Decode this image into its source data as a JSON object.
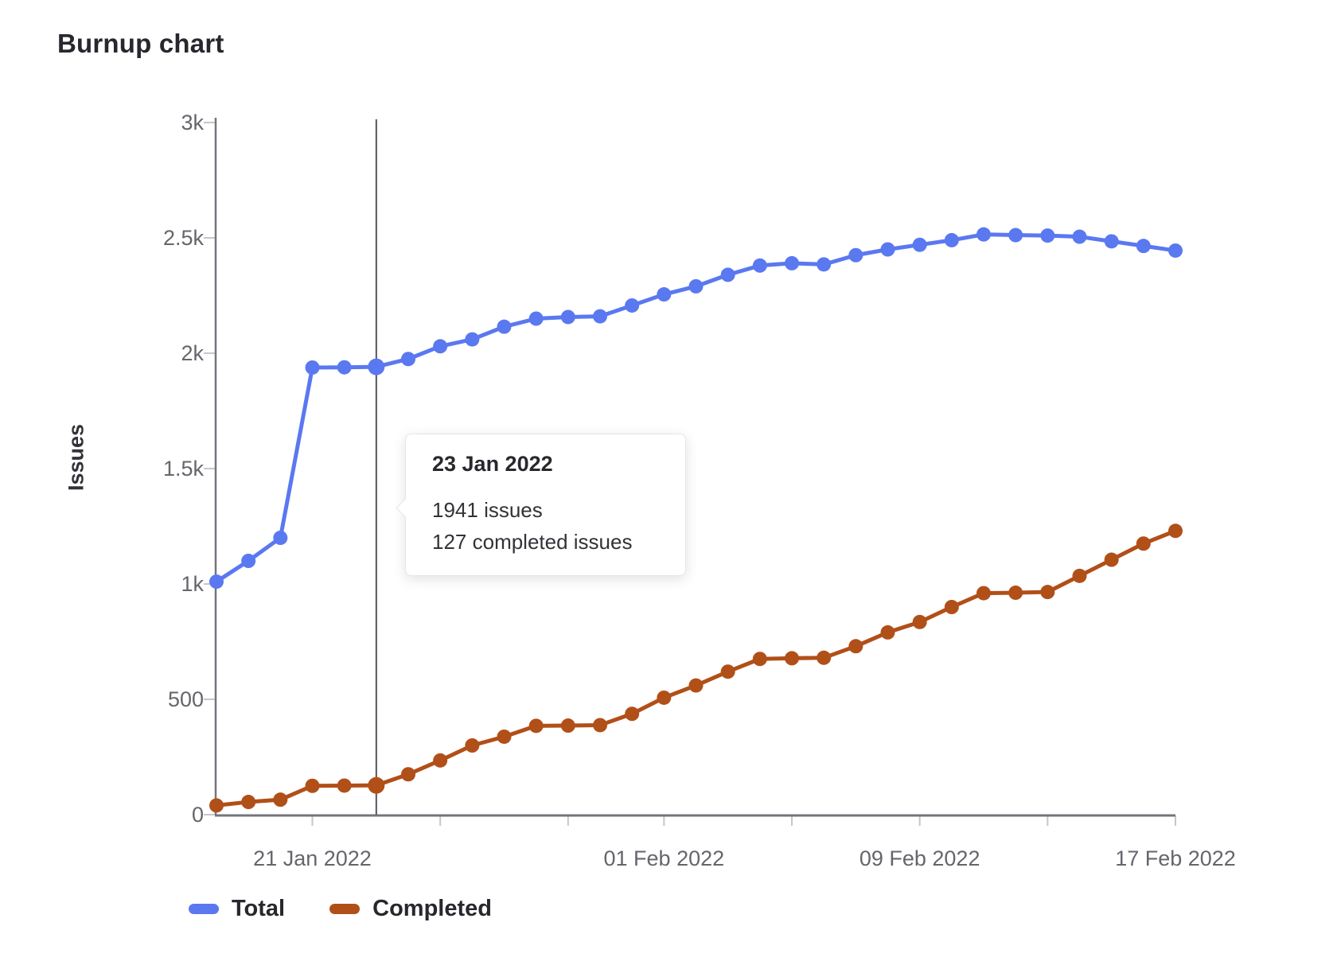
{
  "header": {
    "title": "Burnup chart"
  },
  "chart_data": {
    "type": "line",
    "title": "Burnup chart",
    "xlabel": "",
    "ylabel": "Issues",
    "ylim": [
      0,
      3000
    ],
    "grid": false,
    "legend_position": "bottom",
    "x": [
      "18 Jan 2022",
      "19 Jan 2022",
      "20 Jan 2022",
      "21 Jan 2022",
      "22 Jan 2022",
      "23 Jan 2022",
      "24 Jan 2022",
      "25 Jan 2022",
      "26 Jan 2022",
      "27 Jan 2022",
      "28 Jan 2022",
      "29 Jan 2022",
      "30 Jan 2022",
      "31 Jan 2022",
      "01 Feb 2022",
      "02 Feb 2022",
      "03 Feb 2022",
      "04 Feb 2022",
      "05 Feb 2022",
      "06 Feb 2022",
      "07 Feb 2022",
      "08 Feb 2022",
      "09 Feb 2022",
      "10 Feb 2022",
      "11 Feb 2022",
      "12 Feb 2022",
      "13 Feb 2022",
      "14 Feb 2022",
      "15 Feb 2022",
      "16 Feb 2022",
      "17 Feb 2022"
    ],
    "series": [
      {
        "name": "Total",
        "color": "#5a78f0",
        "values": [
          1010,
          1100,
          1200,
          1938,
          1939,
          1941,
          1975,
          2030,
          2060,
          2115,
          2150,
          2157,
          2160,
          2207,
          2255,
          2290,
          2340,
          2380,
          2390,
          2385,
          2425,
          2450,
          2470,
          2490,
          2515,
          2512,
          2510,
          2505,
          2485,
          2465,
          2445
        ]
      },
      {
        "name": "Completed",
        "color": "#b14f18",
        "values": [
          40,
          55,
          65,
          125,
          126,
          127,
          175,
          235,
          300,
          338,
          385,
          386,
          388,
          437,
          507,
          560,
          620,
          675,
          678,
          680,
          730,
          790,
          835,
          900,
          960,
          962,
          965,
          1035,
          1105,
          1175,
          1230
        ]
      }
    ],
    "yticks": [
      {
        "value": 0,
        "label": "0"
      },
      {
        "value": 500,
        "label": "500"
      },
      {
        "value": 1000,
        "label": "1k"
      },
      {
        "value": 1500,
        "label": "1.5k"
      },
      {
        "value": 2000,
        "label": "2k"
      },
      {
        "value": 2500,
        "label": "2.5k"
      },
      {
        "value": 3000,
        "label": "3k"
      }
    ],
    "xticks": [
      {
        "day": 3,
        "label": "21 Jan 2022"
      },
      {
        "day": 7,
        "label": ""
      },
      {
        "day": 11,
        "label": ""
      },
      {
        "day": 14,
        "label": "01 Feb 2022"
      },
      {
        "day": 18,
        "label": ""
      },
      {
        "day": 22,
        "label": "09 Feb 2022"
      },
      {
        "day": 26,
        "label": ""
      },
      {
        "day": 30,
        "label": "17 Feb 2022"
      }
    ],
    "hover": {
      "index": 5,
      "date": "23 Jan 2022",
      "total": 1941,
      "completed": 127
    }
  },
  "tooltip": {
    "title": "23 Jan 2022",
    "line1": "1941 issues",
    "line2": "127 completed issues"
  },
  "legend": {
    "items": [
      {
        "label": "Total",
        "color": "#5a78f0"
      },
      {
        "label": "Completed",
        "color": "#b14f18"
      }
    ]
  },
  "colors": {
    "axis": "#74747c",
    "tick": "#c6c6cc",
    "crosshair": "#55555a",
    "text_muted": "#65656c",
    "text_dark": "#28272d"
  }
}
